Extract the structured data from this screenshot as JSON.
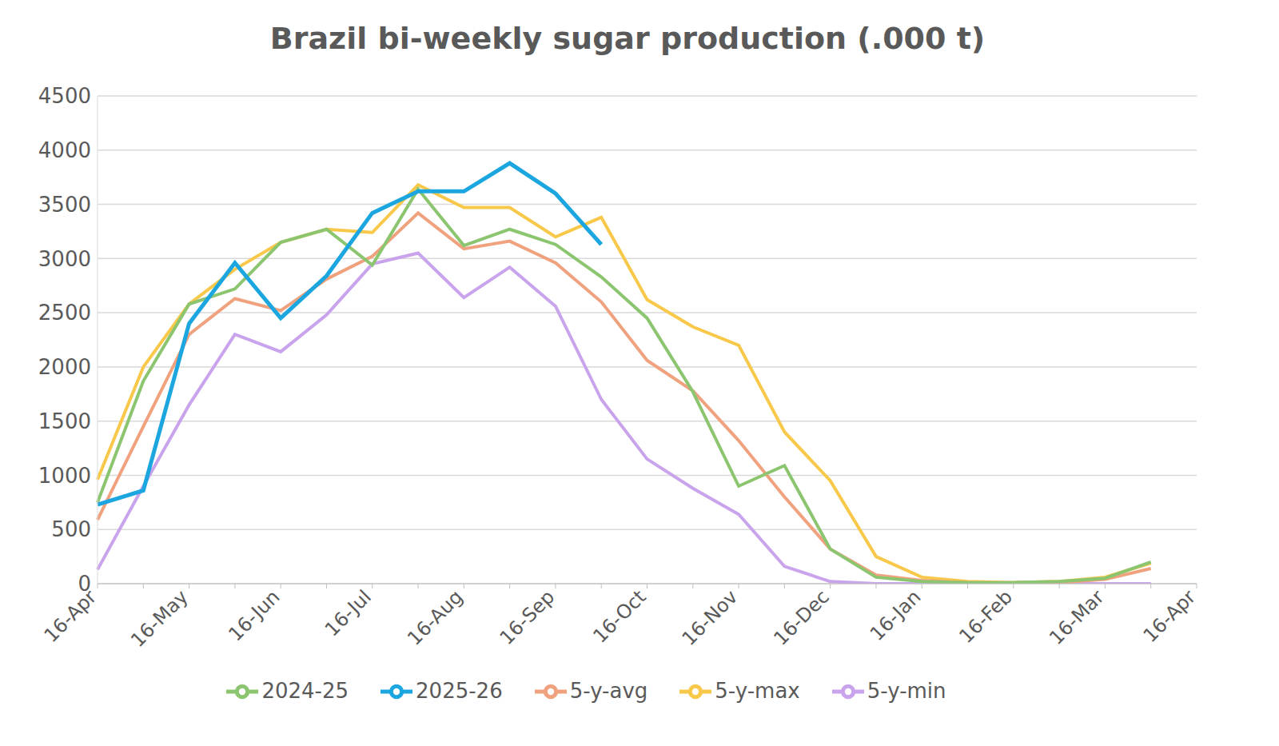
{
  "chart_data": {
    "type": "line",
    "title": "Brazil bi-weekly sugar production (.000 t)",
    "categories": [
      "16-Apr",
      null,
      "16-May",
      null,
      "16-Jun",
      null,
      "16-Jul",
      null,
      "16-Aug",
      null,
      "16-Sep",
      null,
      "16-Oct",
      null,
      "16-Nov",
      null,
      "16-Dec",
      null,
      "16-Jan",
      null,
      "16-Feb",
      null,
      "16-Mar",
      null,
      "16-Apr"
    ],
    "series": [
      {
        "name": "5-y-min",
        "color": "#c9a3ec",
        "values": [
          130,
          900,
          1650,
          2300,
          2140,
          2480,
          2950,
          3050,
          2640,
          2920,
          2560,
          1700,
          1150,
          880,
          640,
          160,
          20,
          0,
          0,
          0,
          0,
          0,
          0,
          0,
          null
        ]
      },
      {
        "name": "5-y-max",
        "color": "#f8c84a",
        "values": [
          960,
          2000,
          2580,
          2900,
          3150,
          3270,
          3240,
          3680,
          3470,
          3470,
          3200,
          3380,
          2620,
          2370,
          2200,
          1400,
          950,
          250,
          60,
          20,
          10,
          20,
          60,
          190,
          null
        ]
      },
      {
        "name": "5-y-avg",
        "color": "#f0a27e",
        "values": [
          590,
          1450,
          2300,
          2630,
          2520,
          2810,
          3020,
          3420,
          3090,
          3160,
          2960,
          2600,
          2060,
          1780,
          1320,
          800,
          320,
          80,
          30,
          10,
          10,
          10,
          40,
          140,
          null
        ]
      },
      {
        "name": "2024-25",
        "color": "#8cc56f",
        "values": [
          750,
          1870,
          2580,
          2720,
          3150,
          3270,
          2940,
          3640,
          3120,
          3270,
          3130,
          2830,
          2450,
          1770,
          900,
          1090,
          320,
          60,
          20,
          10,
          10,
          20,
          50,
          200,
          null
        ]
      },
      {
        "name": "2025-26",
        "color": "#1ca6df",
        "values": [
          730,
          860,
          2400,
          2960,
          2450,
          2840,
          3420,
          3620,
          3620,
          3880,
          3600,
          3130,
          null,
          null,
          null,
          null,
          null,
          null,
          null,
          null,
          null,
          null,
          null,
          null,
          null
        ]
      }
    ],
    "ylim": [
      0,
      4500
    ],
    "yticks": [
      0,
      500,
      1000,
      1500,
      2000,
      2500,
      3000,
      3500,
      4000,
      4500
    ],
    "grid": true,
    "legend": "bottom"
  }
}
